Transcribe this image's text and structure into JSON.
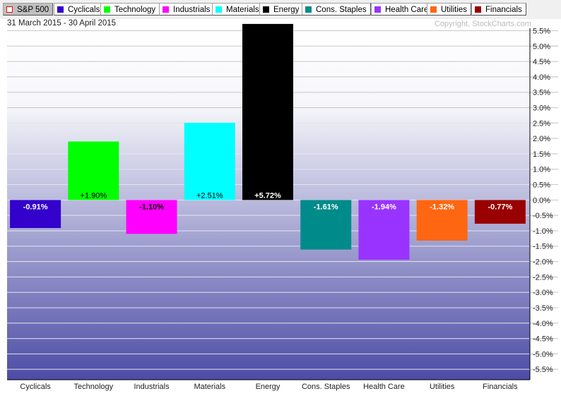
{
  "toolbar": {
    "buttons": [
      {
        "label": "S&P 500",
        "color": "#ff0000",
        "active": true
      },
      {
        "label": "Cyclicals",
        "color": "#3300cc"
      },
      {
        "label": "Technology",
        "color": "#00ff00"
      },
      {
        "label": "Industrials",
        "color": "#ff00ff"
      },
      {
        "label": "Materials",
        "color": "#00ffff"
      },
      {
        "label": "Energy",
        "color": "#000000"
      },
      {
        "label": "Cons. Staples",
        "color": "#008b8b"
      },
      {
        "label": "Health Care",
        "color": "#9933ff"
      },
      {
        "label": "Utilities",
        "color": "#ff6611"
      },
      {
        "label": "Financials",
        "color": "#990000"
      }
    ]
  },
  "date_range": "31 March 2015 - 30 April 2015",
  "copyright": "Copyright, StockCharts.com",
  "chart_data": {
    "type": "bar",
    "categories": [
      "Cyclicals",
      "Technology",
      "Industrials",
      "Materials",
      "Energy",
      "Cons. Staples",
      "Health Care",
      "Utilities",
      "Financials"
    ],
    "values": [
      -0.91,
      1.9,
      -1.1,
      2.51,
      5.72,
      -1.61,
      -1.94,
      -1.32,
      -0.77
    ],
    "data_labels": [
      "-0.91%",
      "+1.90%",
      "-1.10%",
      "+2.51%",
      "+5.72%",
      "-1.61%",
      "-1.94%",
      "-1.32%",
      "-0.77%"
    ],
    "colors": [
      "#3300cc",
      "#00ff00",
      "#ff00ff",
      "#00ffff",
      "#000000",
      "#008b8b",
      "#9933ff",
      "#ff6611",
      "#990000"
    ],
    "label_colors": [
      "#fff",
      "#000",
      "#000",
      "#000",
      "#fff",
      "#fff",
      "#fff",
      "#fff",
      "#fff"
    ],
    "yticks": [
      "5.5%",
      "5.0%",
      "4.5%",
      "4.0%",
      "3.5%",
      "3.0%",
      "2.5%",
      "2.0%",
      "1.5%",
      "1.0%",
      "0.5%",
      "0.0%",
      "-0.5%",
      "-1.0%",
      "-1.5%",
      "-2.0%",
      "-2.5%",
      "-3.0%",
      "-3.5%",
      "-4.0%",
      "-4.5%",
      "-5.0%",
      "-5.5%"
    ],
    "ytick_values": [
      5.5,
      5,
      4.5,
      4,
      3.5,
      3,
      2.5,
      2,
      1.5,
      1,
      0.5,
      0,
      -0.5,
      -1,
      -1.5,
      -2,
      -2.5,
      -3,
      -3.5,
      -4,
      -4.5,
      -5,
      -5.5
    ],
    "ylim": [
      -5.84,
      5.58
    ],
    "grid": true
  }
}
